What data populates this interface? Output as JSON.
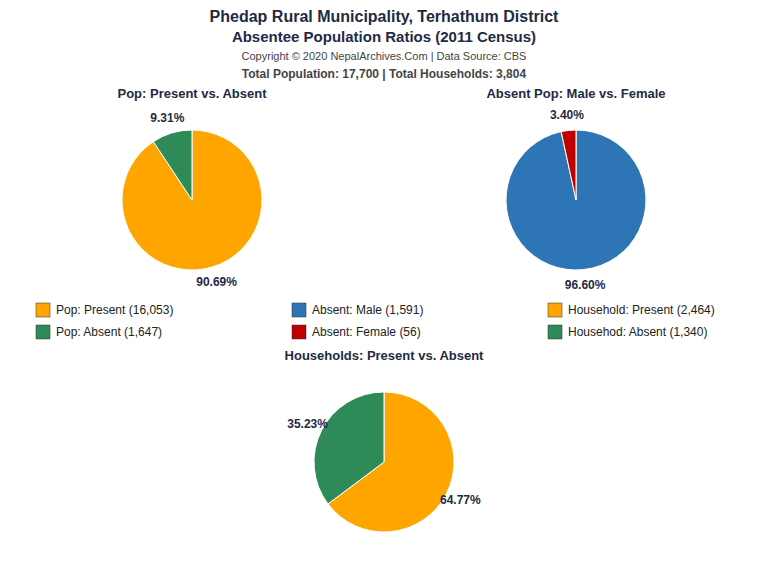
{
  "title": "Phedap Rural Municipality, Terhathum District",
  "subtitle": "Absentee Population Ratios (2011 Census)",
  "annotations": [
    "Copyright © 2020 NepalArchives.Com | Data Source: CBS",
    "Total Population: 17,700 | Total Households: 3,804"
  ],
  "chart_data": [
    {
      "type": "pie",
      "title": "Pop: Present vs. Absent",
      "categories": [
        "Pop: Present (16,053)",
        "Pop: Absent (1,647)"
      ],
      "values": [
        90.69,
        9.31
      ],
      "value_labels": [
        "90.69%",
        "9.31%"
      ],
      "colors": [
        "#FFA500",
        "#2E8B57"
      ],
      "data_labels": true,
      "legend": "bottom"
    },
    {
      "type": "pie",
      "title": "Absent Pop: Male vs. Female",
      "categories": [
        "Absent: Male (1,591)",
        "Absent: Female (56)"
      ],
      "values": [
        96.6,
        3.4
      ],
      "value_labels": [
        "96.60%",
        "3.40%"
      ],
      "colors": [
        "#2E75B6",
        "#C00000"
      ],
      "data_labels": true,
      "legend": "bottom"
    },
    {
      "type": "pie",
      "title": "Households: Present vs. Absent",
      "categories": [
        "Household: Present (2,464)",
        "Househod: Absent (1,340)"
      ],
      "values": [
        64.77,
        35.23
      ],
      "value_labels": [
        "64.77%",
        "35.23%"
      ],
      "colors": [
        "#FFA500",
        "#2E8B57"
      ],
      "data_labels": true,
      "legend": "bottom"
    }
  ]
}
